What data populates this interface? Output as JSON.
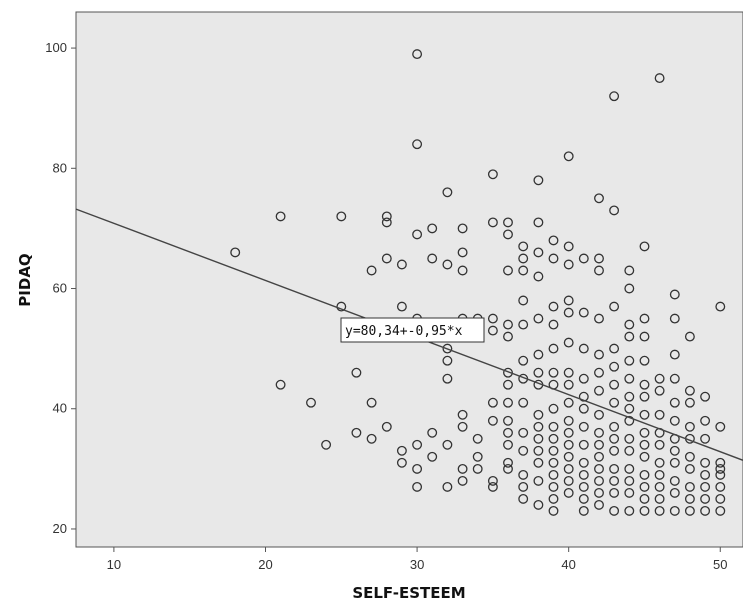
{
  "chart_data": {
    "type": "scatter",
    "xlabel": "SELF-ESTEEM",
    "ylabel": "PIDAQ",
    "xlim": [
      7.5,
      51.5
    ],
    "ylim": [
      17,
      106
    ],
    "x_ticks": [
      10,
      20,
      30,
      40,
      50
    ],
    "y_ticks": [
      20,
      40,
      60,
      80,
      100
    ],
    "grid": false,
    "background": "#e8e8e8",
    "marker_color": "#333333",
    "fit_line": {
      "intercept": 80.34,
      "slope": -0.95,
      "label": "y=80,34+-0,95*x"
    },
    "points": [
      [
        18,
        66
      ],
      [
        21,
        72
      ],
      [
        21,
        44
      ],
      [
        23,
        41
      ],
      [
        24,
        34
      ],
      [
        25,
        72
      ],
      [
        25,
        57
      ],
      [
        26,
        46
      ],
      [
        26,
        36
      ],
      [
        27,
        63
      ],
      [
        27,
        41
      ],
      [
        27,
        35
      ],
      [
        28,
        72
      ],
      [
        28,
        71
      ],
      [
        28,
        65
      ],
      [
        28,
        37
      ],
      [
        29,
        64
      ],
      [
        29,
        57
      ],
      [
        29,
        33
      ],
      [
        29,
        31
      ],
      [
        30,
        99
      ],
      [
        30,
        84
      ],
      [
        30,
        69
      ],
      [
        30,
        55
      ],
      [
        30,
        34
      ],
      [
        30,
        30
      ],
      [
        30,
        27
      ],
      [
        31,
        70
      ],
      [
        31,
        65
      ],
      [
        31,
        36
      ],
      [
        31,
        32
      ],
      [
        32,
        76
      ],
      [
        32,
        64
      ],
      [
        32,
        50
      ],
      [
        32,
        48
      ],
      [
        32,
        45
      ],
      [
        32,
        34
      ],
      [
        32,
        27
      ],
      [
        33,
        70
      ],
      [
        33,
        66
      ],
      [
        33,
        63
      ],
      [
        33,
        55
      ],
      [
        33,
        52
      ],
      [
        33,
        39
      ],
      [
        33,
        37
      ],
      [
        33,
        30
      ],
      [
        33,
        28
      ],
      [
        34,
        55
      ],
      [
        34,
        35
      ],
      [
        34,
        32
      ],
      [
        34,
        30
      ],
      [
        35,
        79
      ],
      [
        35,
        71
      ],
      [
        35,
        55
      ],
      [
        35,
        53
      ],
      [
        35,
        41
      ],
      [
        35,
        38
      ],
      [
        35,
        28
      ],
      [
        35,
        27
      ],
      [
        36,
        71
      ],
      [
        36,
        69
      ],
      [
        36,
        63
      ],
      [
        36,
        54
      ],
      [
        36,
        52
      ],
      [
        36,
        46
      ],
      [
        36,
        44
      ],
      [
        36,
        41
      ],
      [
        36,
        38
      ],
      [
        36,
        36
      ],
      [
        36,
        34
      ],
      [
        36,
        31
      ],
      [
        36,
        30
      ],
      [
        37,
        67
      ],
      [
        37,
        65
      ],
      [
        37,
        63
      ],
      [
        37,
        58
      ],
      [
        37,
        54
      ],
      [
        37,
        48
      ],
      [
        37,
        45
      ],
      [
        37,
        41
      ],
      [
        37,
        36
      ],
      [
        37,
        33
      ],
      [
        37,
        29
      ],
      [
        37,
        27
      ],
      [
        37,
        25
      ],
      [
        38,
        78
      ],
      [
        38,
        71
      ],
      [
        38,
        66
      ],
      [
        38,
        62
      ],
      [
        38,
        55
      ],
      [
        38,
        49
      ],
      [
        38,
        46
      ],
      [
        38,
        44
      ],
      [
        38,
        39
      ],
      [
        38,
        37
      ],
      [
        38,
        35
      ],
      [
        38,
        33
      ],
      [
        38,
        31
      ],
      [
        38,
        28
      ],
      [
        38,
        24
      ],
      [
        39,
        68
      ],
      [
        39,
        65
      ],
      [
        39,
        57
      ],
      [
        39,
        54
      ],
      [
        39,
        50
      ],
      [
        39,
        46
      ],
      [
        39,
        44
      ],
      [
        39,
        40
      ],
      [
        39,
        37
      ],
      [
        39,
        35
      ],
      [
        39,
        33
      ],
      [
        39,
        31
      ],
      [
        39,
        29
      ],
      [
        39,
        27
      ],
      [
        39,
        25
      ],
      [
        39,
        23
      ],
      [
        40,
        82
      ],
      [
        40,
        67
      ],
      [
        40,
        64
      ],
      [
        40,
        58
      ],
      [
        40,
        56
      ],
      [
        40,
        51
      ],
      [
        40,
        46
      ],
      [
        40,
        44
      ],
      [
        40,
        41
      ],
      [
        40,
        38
      ],
      [
        40,
        36
      ],
      [
        40,
        34
      ],
      [
        40,
        32
      ],
      [
        40,
        30
      ],
      [
        40,
        28
      ],
      [
        40,
        26
      ],
      [
        41,
        65
      ],
      [
        41,
        56
      ],
      [
        41,
        50
      ],
      [
        41,
        45
      ],
      [
        41,
        42
      ],
      [
        41,
        40
      ],
      [
        41,
        37
      ],
      [
        41,
        34
      ],
      [
        41,
        31
      ],
      [
        41,
        29
      ],
      [
        41,
        27
      ],
      [
        41,
        25
      ],
      [
        41,
        23
      ],
      [
        42,
        75
      ],
      [
        42,
        65
      ],
      [
        42,
        63
      ],
      [
        42,
        55
      ],
      [
        42,
        49
      ],
      [
        42,
        46
      ],
      [
        42,
        43
      ],
      [
        42,
        39
      ],
      [
        42,
        36
      ],
      [
        42,
        34
      ],
      [
        42,
        32
      ],
      [
        42,
        30
      ],
      [
        42,
        28
      ],
      [
        42,
        26
      ],
      [
        42,
        24
      ],
      [
        43,
        92
      ],
      [
        43,
        73
      ],
      [
        43,
        57
      ],
      [
        43,
        50
      ],
      [
        43,
        47
      ],
      [
        43,
        44
      ],
      [
        43,
        41
      ],
      [
        43,
        37
      ],
      [
        43,
        35
      ],
      [
        43,
        33
      ],
      [
        43,
        30
      ],
      [
        43,
        28
      ],
      [
        43,
        26
      ],
      [
        43,
        23
      ],
      [
        44,
        63
      ],
      [
        44,
        60
      ],
      [
        44,
        54
      ],
      [
        44,
        52
      ],
      [
        44,
        48
      ],
      [
        44,
        45
      ],
      [
        44,
        42
      ],
      [
        44,
        40
      ],
      [
        44,
        38
      ],
      [
        44,
        35
      ],
      [
        44,
        33
      ],
      [
        44,
        30
      ],
      [
        44,
        28
      ],
      [
        44,
        26
      ],
      [
        44,
        23
      ],
      [
        45,
        67
      ],
      [
        45,
        55
      ],
      [
        45,
        52
      ],
      [
        45,
        48
      ],
      [
        45,
        44
      ],
      [
        45,
        42
      ],
      [
        45,
        39
      ],
      [
        45,
        36
      ],
      [
        45,
        34
      ],
      [
        45,
        32
      ],
      [
        45,
        29
      ],
      [
        45,
        27
      ],
      [
        45,
        25
      ],
      [
        45,
        23
      ],
      [
        46,
        95
      ],
      [
        46,
        45
      ],
      [
        46,
        43
      ],
      [
        46,
        39
      ],
      [
        46,
        36
      ],
      [
        46,
        34
      ],
      [
        46,
        31
      ],
      [
        46,
        29
      ],
      [
        46,
        27
      ],
      [
        46,
        25
      ],
      [
        46,
        23
      ],
      [
        47,
        59
      ],
      [
        47,
        55
      ],
      [
        47,
        49
      ],
      [
        47,
        45
      ],
      [
        47,
        41
      ],
      [
        47,
        38
      ],
      [
        47,
        35
      ],
      [
        47,
        33
      ],
      [
        47,
        31
      ],
      [
        47,
        28
      ],
      [
        47,
        26
      ],
      [
        47,
        23
      ],
      [
        48,
        52
      ],
      [
        48,
        43
      ],
      [
        48,
        41
      ],
      [
        48,
        37
      ],
      [
        48,
        35
      ],
      [
        48,
        32
      ],
      [
        48,
        30
      ],
      [
        48,
        27
      ],
      [
        48,
        25
      ],
      [
        48,
        23
      ],
      [
        49,
        42
      ],
      [
        49,
        38
      ],
      [
        49,
        35
      ],
      [
        49,
        31
      ],
      [
        49,
        29
      ],
      [
        49,
        27
      ],
      [
        49,
        25
      ],
      [
        49,
        23
      ],
      [
        50,
        57
      ],
      [
        50,
        37
      ],
      [
        50,
        31
      ],
      [
        50,
        30
      ],
      [
        50,
        29
      ],
      [
        50,
        27
      ],
      [
        50,
        25
      ],
      [
        50,
        23
      ]
    ]
  }
}
